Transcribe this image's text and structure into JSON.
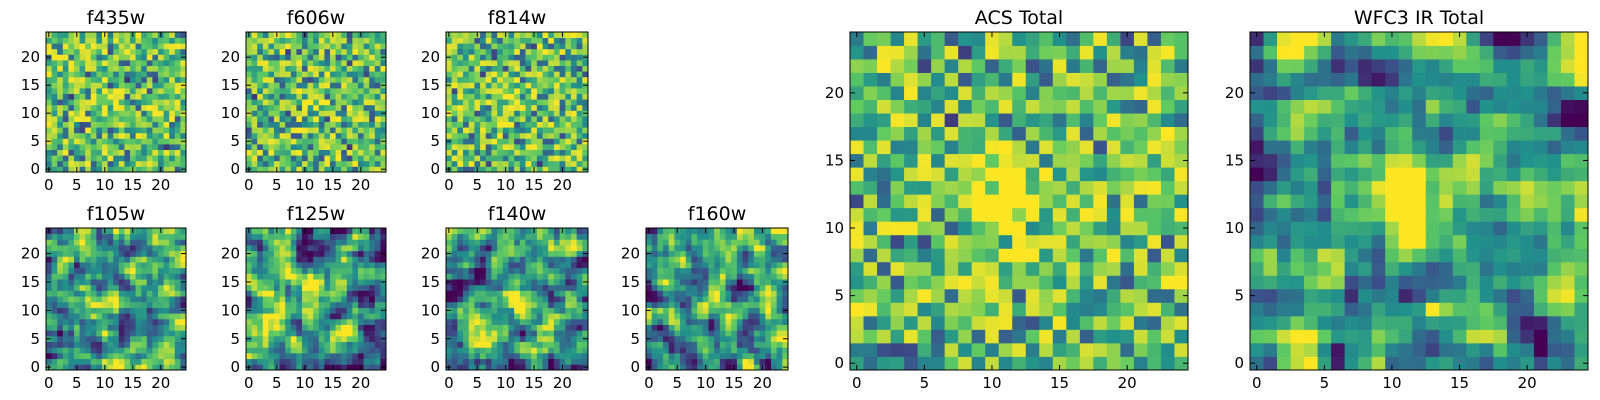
{
  "figure": {
    "description_text": ""
  },
  "colormap": {
    "name": "viridis",
    "stops": [
      "#440154",
      "#3b528b",
      "#21918c",
      "#5ec962",
      "#fde725"
    ]
  },
  "chart_data": [
    {
      "type": "heatmap",
      "title": "f435w",
      "grid": false,
      "xlim": [
        -0.5,
        24.5
      ],
      "ylim": [
        -0.5,
        24.5
      ],
      "xticks": [
        0,
        5,
        10,
        15,
        20
      ],
      "yticks": [
        0,
        5,
        10,
        15,
        20
      ],
      "shape": [
        25,
        25
      ],
      "pattern": "noise",
      "seed": 11,
      "center_bright": 0.15
    },
    {
      "type": "heatmap",
      "title": "f606w",
      "grid": false,
      "xlim": [
        -0.5,
        24.5
      ],
      "ylim": [
        -0.5,
        24.5
      ],
      "xticks": [
        0,
        5,
        10,
        15,
        20
      ],
      "yticks": [
        0,
        5,
        10,
        15,
        20
      ],
      "shape": [
        25,
        25
      ],
      "pattern": "noise",
      "seed": 23,
      "center_bright": 0.25
    },
    {
      "type": "heatmap",
      "title": "f814w",
      "grid": false,
      "xlim": [
        -0.5,
        24.5
      ],
      "ylim": [
        -0.5,
        24.5
      ],
      "xticks": [
        0,
        5,
        10,
        15,
        20
      ],
      "yticks": [
        0,
        5,
        10,
        15,
        20
      ],
      "shape": [
        25,
        25
      ],
      "pattern": "noise",
      "seed": 37,
      "center_bright": 0.2
    },
    {
      "type": "heatmap",
      "title": "f105w",
      "grid": false,
      "xlim": [
        -0.5,
        24.5
      ],
      "ylim": [
        -0.5,
        24.5
      ],
      "xticks": [
        0,
        5,
        10,
        15,
        20
      ],
      "yticks": [
        0,
        5,
        10,
        15,
        20
      ],
      "shape": [
        25,
        25
      ],
      "pattern": "smooth",
      "seed": 41,
      "center_bright": 0.3
    },
    {
      "type": "heatmap",
      "title": "f125w",
      "grid": false,
      "xlim": [
        -0.5,
        24.5
      ],
      "ylim": [
        -0.5,
        24.5
      ],
      "xticks": [
        0,
        5,
        10,
        15,
        20
      ],
      "yticks": [
        0,
        5,
        10,
        15,
        20
      ],
      "shape": [
        25,
        25
      ],
      "pattern": "smooth",
      "seed": 53,
      "center_bright": 0.35
    },
    {
      "type": "heatmap",
      "title": "f140w",
      "grid": false,
      "xlim": [
        -0.5,
        24.5
      ],
      "ylim": [
        -0.5,
        24.5
      ],
      "xticks": [
        0,
        5,
        10,
        15,
        20
      ],
      "yticks": [
        0,
        5,
        10,
        15,
        20
      ],
      "shape": [
        25,
        25
      ],
      "pattern": "smooth",
      "seed": 67,
      "center_bright": 0.45
    },
    {
      "type": "heatmap",
      "title": "f160w",
      "grid": false,
      "xlim": [
        -0.5,
        24.5
      ],
      "ylim": [
        -0.5,
        24.5
      ],
      "xticks": [
        0,
        5,
        10,
        15,
        20
      ],
      "yticks": [
        0,
        5,
        10,
        15,
        20
      ],
      "shape": [
        25,
        25
      ],
      "pattern": "smooth",
      "seed": 79,
      "center_bright": 0.4
    },
    {
      "type": "heatmap",
      "title": "ACS Total",
      "grid": false,
      "xlim": [
        -0.5,
        24.5
      ],
      "ylim": [
        -0.5,
        24.5
      ],
      "xticks": [
        0,
        5,
        10,
        15,
        20
      ],
      "yticks": [
        0,
        5,
        10,
        15,
        20
      ],
      "shape": [
        25,
        25
      ],
      "pattern": "noise",
      "seed": 97,
      "center_bright": 0.55
    },
    {
      "type": "heatmap",
      "title": "WFC3 IR Total",
      "grid": false,
      "xlim": [
        -0.5,
        24.5
      ],
      "ylim": [
        -0.5,
        24.5
      ],
      "xticks": [
        0,
        5,
        10,
        15,
        20
      ],
      "yticks": [
        0,
        5,
        10,
        15,
        20
      ],
      "shape": [
        25,
        25
      ],
      "pattern": "smooth",
      "seed": 113,
      "center_bright": 0.7
    }
  ]
}
